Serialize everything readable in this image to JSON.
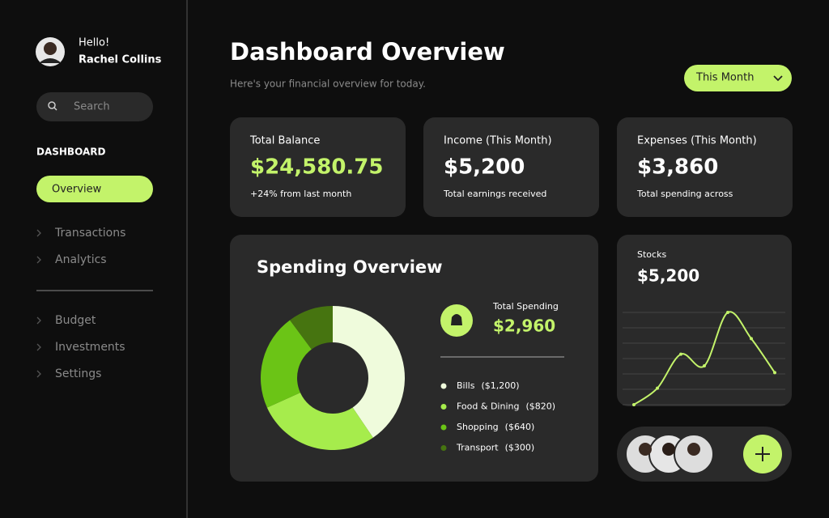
{
  "sidebar": {
    "greeting": "Hello!",
    "user_name": "Rachel Collins",
    "search_placeholder": "Search",
    "section_title": "DASHBOARD",
    "active_item": "Overview",
    "nav_items": [
      "Transactions",
      "Analytics"
    ],
    "nav_items_secondary": [
      "Budget",
      "Investments",
      "Settings"
    ]
  },
  "header": {
    "title": "Dashboard Overview",
    "subtitle": "Here's your financial overview for today.",
    "period_selector": "This Month"
  },
  "cards": [
    {
      "label": "Total Balance",
      "value": "$24,580.75",
      "note": "+24% from last month"
    },
    {
      "label": "Income (This Month)",
      "value": "$5,200",
      "note": "Total earnings received"
    },
    {
      "label": "Expenses (This Month)",
      "value": "$3,860",
      "note": "Total spending across"
    }
  ],
  "spending": {
    "total_label": "Total Spending",
    "total_value": "$2,960"
  },
  "stocks": {
    "label": "Stocks",
    "value": "$5,200"
  },
  "chart_data": [
    {
      "type": "donut",
      "title": "Spending Overview",
      "categories": [
        "Bills",
        "Food & Dining",
        "Shopping",
        "Transport"
      ],
      "values": [
        1200,
        820,
        640,
        300
      ],
      "value_labels": [
        "($1,200)",
        "($820)",
        "($640)",
        "($300)"
      ],
      "colors": [
        "#effbdc",
        "#a6ec4c",
        "#6bc416",
        "#467410"
      ]
    },
    {
      "type": "line",
      "categories": [
        null,
        null,
        null,
        null,
        null,
        null,
        null
      ],
      "values": [
        0,
        17,
        52,
        40,
        95,
        68,
        33
      ],
      "ylim": [
        0,
        100
      ],
      "color": "#c3f36a"
    }
  ]
}
